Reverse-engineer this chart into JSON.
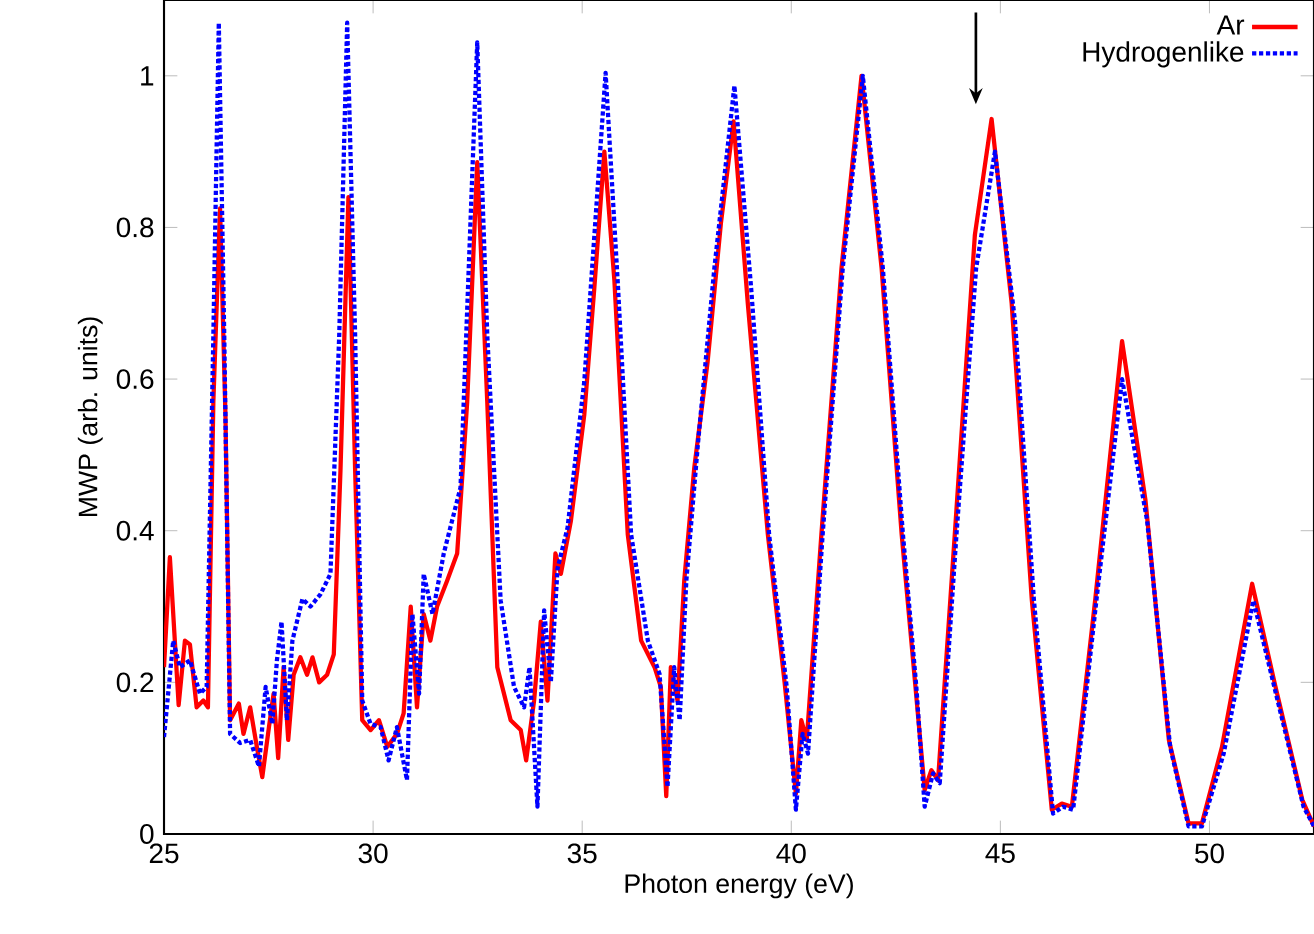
{
  "chart_data": {
    "type": "line",
    "xlabel": "Photon energy (eV)",
    "ylabel": "MWP (arb. units)",
    "xlim": [
      25,
      52.5
    ],
    "ylim": [
      0,
      1.1
    ],
    "xticks": [
      25,
      30,
      35,
      40,
      45,
      50
    ],
    "yticks": [
      0,
      0.2,
      0.4,
      0.6,
      0.8,
      1
    ],
    "legend": "top right",
    "series": [
      {
        "name": "Ar",
        "color": "#ff0000",
        "line_style": "solid",
        "x": [
          25,
          25.14,
          25.35,
          25.5,
          25.62,
          25.78,
          25.94,
          26.05,
          26.18,
          26.34,
          26.47,
          26.58,
          26.79,
          26.9,
          27.06,
          27.22,
          27.35,
          27.51,
          27.62,
          27.73,
          27.86,
          27.97,
          28.1,
          28.26,
          28.42,
          28.55,
          28.71,
          28.9,
          29.06,
          29.22,
          29.41,
          29.57,
          29.74,
          29.94,
          30.14,
          30.34,
          30.57,
          30.73,
          30.9,
          31.05,
          31.21,
          31.37,
          31.53,
          31.77,
          32.01,
          32.25,
          32.49,
          32.73,
          32.97,
          33.29,
          33.53,
          33.66,
          33.85,
          34.01,
          34.17,
          34.36,
          34.49,
          34.73,
          35.05,
          35.29,
          35.53,
          35.77,
          36.09,
          36.41,
          36.73,
          36.88,
          37.01,
          37.12,
          37.28,
          37.44,
          37.68,
          38.0,
          38.32,
          38.62,
          38.96,
          39.44,
          39.84,
          40.11,
          40.24,
          40.37,
          40.72,
          41.2,
          41.68,
          42.16,
          42.64,
          42.96,
          43.19,
          43.35,
          43.51,
          43.91,
          44.39,
          44.79,
          45.27,
          45.75,
          46.23,
          46.47,
          46.71,
          47.27,
          47.91,
          48.47,
          49.03,
          49.5,
          49.82,
          50.3,
          51.02,
          51.58,
          52.22,
          52.5
        ],
        "values": [
          0.22,
          0.365,
          0.17,
          0.255,
          0.25,
          0.167,
          0.176,
          0.167,
          0.57,
          0.825,
          0.55,
          0.15,
          0.172,
          0.132,
          0.167,
          0.115,
          0.075,
          0.141,
          0.185,
          0.1,
          0.22,
          0.124,
          0.21,
          0.233,
          0.21,
          0.233,
          0.2,
          0.21,
          0.237,
          0.48,
          0.84,
          0.48,
          0.15,
          0.137,
          0.15,
          0.115,
          0.132,
          0.159,
          0.3,
          0.167,
          0.29,
          0.255,
          0.3,
          0.334,
          0.37,
          0.57,
          0.886,
          0.57,
          0.22,
          0.15,
          0.137,
          0.097,
          0.176,
          0.28,
          0.176,
          0.37,
          0.343,
          0.413,
          0.553,
          0.72,
          0.9,
          0.73,
          0.395,
          0.255,
          0.22,
          0.194,
          0.05,
          0.22,
          0.176,
          0.334,
          0.483,
          0.623,
          0.807,
          0.94,
          0.7,
          0.395,
          0.2,
          0.053,
          0.15,
          0.124,
          0.395,
          0.746,
          1.0,
          0.746,
          0.395,
          0.2,
          0.058,
          0.084,
          0.071,
          0.395,
          0.79,
          0.943,
          0.7,
          0.31,
          0.032,
          0.04,
          0.036,
          0.31,
          0.65,
          0.44,
          0.124,
          0.014,
          0.014,
          0.115,
          0.33,
          0.194,
          0.045,
          0.01
        ]
      },
      {
        "name": "Hydrogenlike",
        "color": "#0000ff",
        "line_style": "dotted",
        "x": [
          25,
          25.22,
          25.38,
          25.62,
          25.86,
          26.02,
          26.18,
          26.31,
          26.44,
          26.58,
          26.82,
          27.06,
          27.27,
          27.43,
          27.59,
          27.7,
          27.81,
          27.94,
          28.07,
          28.31,
          28.5,
          28.74,
          28.98,
          29.19,
          29.38,
          29.57,
          29.74,
          29.94,
          30.18,
          30.37,
          30.57,
          30.81,
          30.94,
          31.1,
          31.21,
          31.42,
          31.69,
          32.09,
          32.49,
          32.73,
          33.05,
          33.37,
          33.61,
          33.74,
          33.93,
          34.09,
          34.25,
          34.41,
          34.65,
          35.05,
          35.56,
          35.85,
          36.17,
          36.57,
          36.85,
          37.04,
          37.2,
          37.33,
          37.49,
          37.76,
          38.16,
          38.64,
          39.04,
          39.47,
          39.89,
          40.11,
          40.27,
          40.4,
          40.75,
          41.23,
          41.71,
          42.19,
          42.67,
          42.99,
          43.19,
          43.39,
          43.55,
          43.95,
          44.42,
          44.87,
          45.35,
          45.8,
          46.26,
          46.5,
          46.74,
          47.3,
          47.91,
          48.51,
          49.06,
          49.5,
          49.82,
          50.34,
          51.05,
          51.63,
          52.25,
          52.5
        ],
        "values": [
          0.128,
          0.255,
          0.22,
          0.229,
          0.185,
          0.194,
          0.658,
          1.07,
          0.658,
          0.132,
          0.12,
          0.124,
          0.089,
          0.194,
          0.145,
          0.229,
          0.28,
          0.15,
          0.255,
          0.31,
          0.3,
          0.316,
          0.343,
          0.658,
          1.07,
          0.658,
          0.176,
          0.145,
          0.141,
          0.097,
          0.141,
          0.071,
          0.29,
          0.185,
          0.343,
          0.29,
          0.37,
          0.457,
          1.044,
          0.658,
          0.308,
          0.194,
          0.167,
          0.22,
          0.036,
          0.295,
          0.2,
          0.35,
          0.404,
          0.597,
          1.004,
          0.728,
          0.395,
          0.255,
          0.211,
          0.062,
          0.22,
          0.15,
          0.334,
          0.51,
          0.746,
          0.987,
          0.72,
          0.395,
          0.194,
          0.032,
          0.132,
          0.106,
          0.395,
          0.746,
          1.0,
          0.746,
          0.395,
          0.194,
          0.036,
          0.08,
          0.067,
          0.395,
          0.746,
          0.9,
          0.676,
          0.31,
          0.027,
          0.036,
          0.032,
          0.31,
          0.6,
          0.413,
          0.115,
          0.01,
          0.01,
          0.106,
          0.308,
          0.176,
          0.036,
          0.01
        ]
      }
    ]
  }
}
